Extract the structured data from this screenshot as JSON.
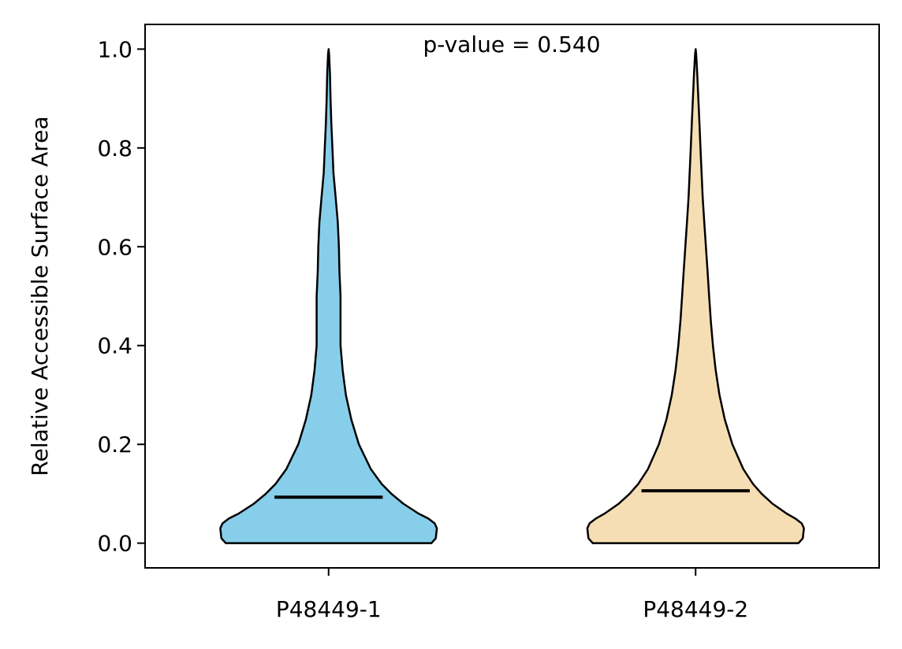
{
  "chart_data": {
    "type": "violin",
    "annotation": "p-value = 0.540",
    "xlabel": "",
    "ylabel": "Relative Accessible Surface Area",
    "categories": [
      "P48449-1",
      "P48449-2"
    ],
    "ylim": [
      -0.05,
      1.05
    ],
    "yticks": [
      0.0,
      0.2,
      0.4,
      0.6,
      0.8,
      1.0
    ],
    "ytick_labels": [
      "0.0",
      "0.2",
      "0.4",
      "0.6",
      "0.8",
      "1.0"
    ],
    "grid": false,
    "series": [
      {
        "category": "P48449-1",
        "color": "#87CEEB",
        "median": 0.093,
        "min": 0.0,
        "max": 1.0,
        "density_profile": [
          [
            0.0,
            0.95
          ],
          [
            0.01,
            0.99
          ],
          [
            0.02,
            0.995
          ],
          [
            0.03,
            1.0
          ],
          [
            0.04,
            0.98
          ],
          [
            0.05,
            0.92
          ],
          [
            0.06,
            0.83
          ],
          [
            0.08,
            0.69
          ],
          [
            0.1,
            0.58
          ],
          [
            0.12,
            0.49
          ],
          [
            0.15,
            0.39
          ],
          [
            0.2,
            0.28
          ],
          [
            0.25,
            0.21
          ],
          [
            0.3,
            0.16
          ],
          [
            0.35,
            0.13
          ],
          [
            0.4,
            0.11
          ],
          [
            0.45,
            0.11
          ],
          [
            0.5,
            0.11
          ],
          [
            0.55,
            0.1
          ],
          [
            0.6,
            0.095
          ],
          [
            0.65,
            0.085
          ],
          [
            0.7,
            0.065
          ],
          [
            0.75,
            0.045
          ],
          [
            0.8,
            0.035
          ],
          [
            0.85,
            0.025
          ],
          [
            0.9,
            0.018
          ],
          [
            0.95,
            0.013
          ],
          [
            0.99,
            0.005
          ],
          [
            1.0,
            0.0
          ]
        ]
      },
      {
        "category": "P48449-2",
        "color": "#F5DEB3",
        "median": 0.106,
        "min": 0.0,
        "max": 1.0,
        "density_profile": [
          [
            0.0,
            0.95
          ],
          [
            0.01,
            0.99
          ],
          [
            0.02,
            0.995
          ],
          [
            0.03,
            1.0
          ],
          [
            0.04,
            0.98
          ],
          [
            0.05,
            0.92
          ],
          [
            0.06,
            0.84
          ],
          [
            0.08,
            0.71
          ],
          [
            0.1,
            0.61
          ],
          [
            0.12,
            0.53
          ],
          [
            0.15,
            0.44
          ],
          [
            0.2,
            0.34
          ],
          [
            0.25,
            0.27
          ],
          [
            0.3,
            0.22
          ],
          [
            0.35,
            0.185
          ],
          [
            0.4,
            0.16
          ],
          [
            0.45,
            0.14
          ],
          [
            0.5,
            0.125
          ],
          [
            0.55,
            0.11
          ],
          [
            0.6,
            0.095
          ],
          [
            0.65,
            0.08
          ],
          [
            0.7,
            0.065
          ],
          [
            0.75,
            0.055
          ],
          [
            0.8,
            0.045
          ],
          [
            0.85,
            0.035
          ],
          [
            0.9,
            0.025
          ],
          [
            0.95,
            0.015
          ],
          [
            0.99,
            0.005
          ],
          [
            1.0,
            0.0
          ]
        ]
      }
    ]
  }
}
